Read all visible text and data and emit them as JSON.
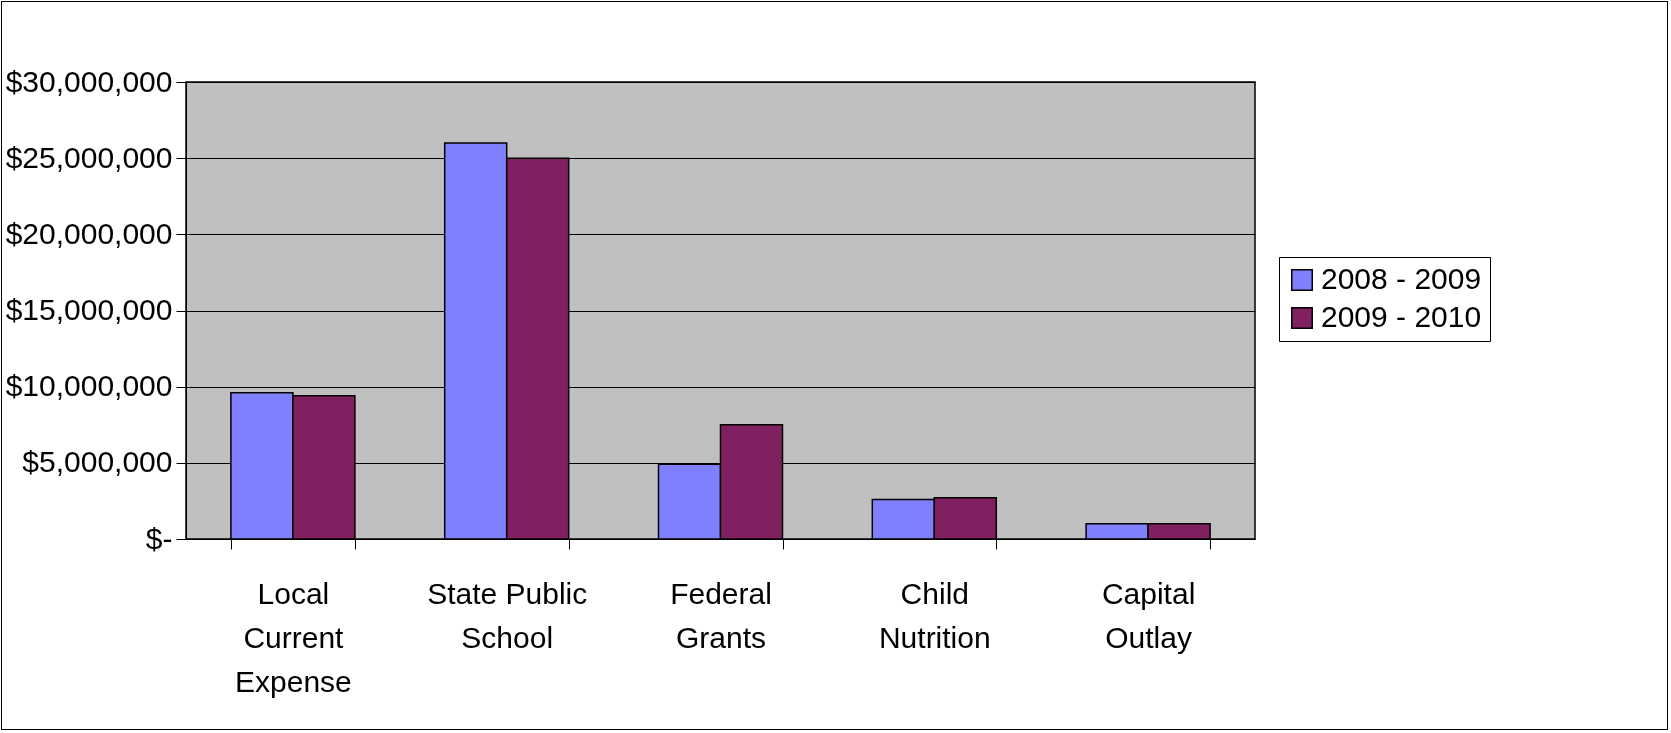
{
  "chart_data": {
    "type": "bar",
    "categories": [
      "Local Current Expense",
      "State Public School",
      "Federal Grants",
      "Child Nutrition",
      "Capital Outlay"
    ],
    "series": [
      {
        "name": "2008 - 2009",
        "color": "#8080ff",
        "values": [
          9600000,
          26000000,
          4900000,
          2600000,
          1000000
        ]
      },
      {
        "name": "2009 - 2010",
        "color": "#802060",
        "values": [
          9400000,
          25000000,
          7500000,
          2700000,
          1000000
        ]
      }
    ],
    "ylim": [
      0,
      30000000
    ],
    "yticks": [
      {
        "value": 0,
        "label": "$-"
      },
      {
        "value": 5000000,
        "label": "$5,000,000"
      },
      {
        "value": 10000000,
        "label": "$10,000,000"
      },
      {
        "value": 15000000,
        "label": "$15,000,000"
      },
      {
        "value": 20000000,
        "label": "$20,000,000"
      },
      {
        "value": 25000000,
        "label": "$25,000,000"
      },
      {
        "value": 30000000,
        "label": "$30,000,000"
      }
    ],
    "grid": "y",
    "legend": "right"
  }
}
